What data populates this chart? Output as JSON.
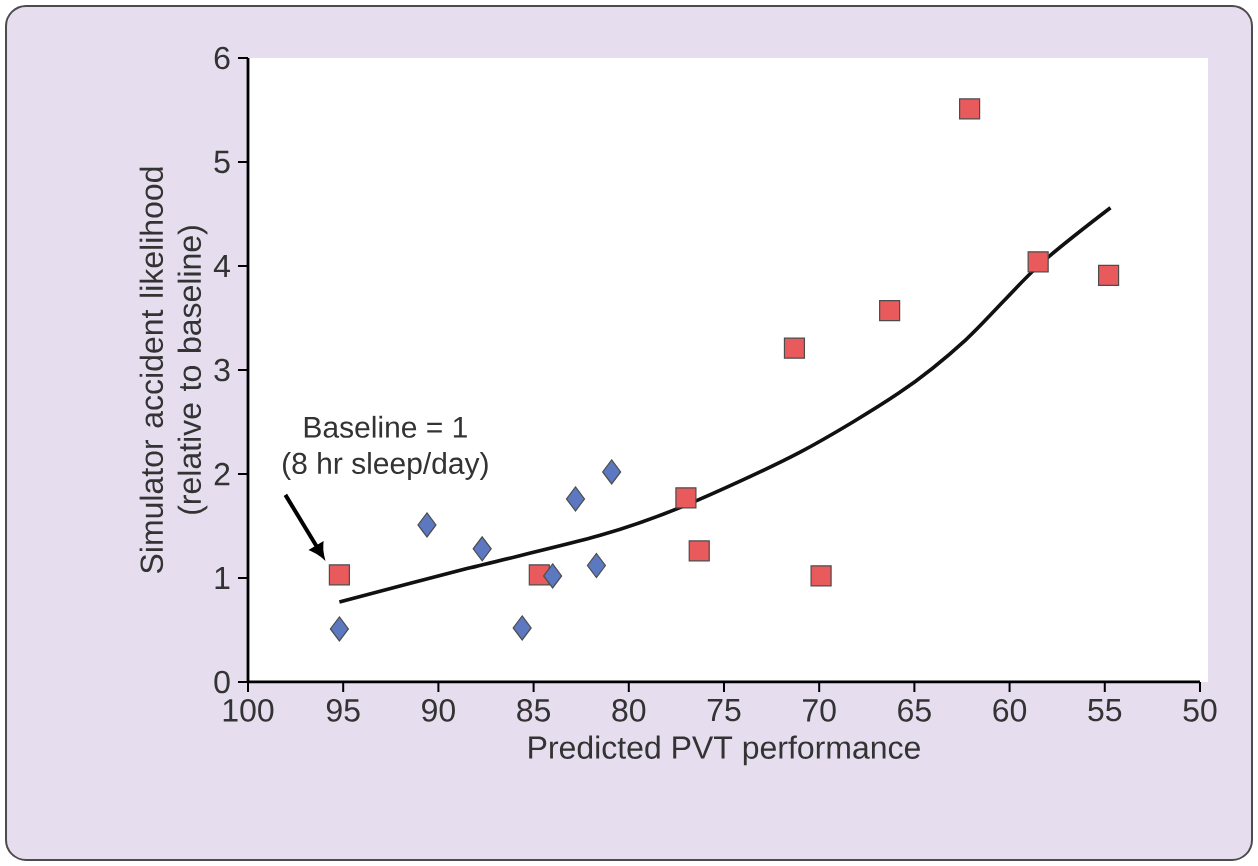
{
  "chart_data": {
    "type": "scatter",
    "xlabel": "Predicted PVT performance",
    "ylabel": "Simulator accident likelihood (relative to baseline)",
    "xlim": [
      100,
      50
    ],
    "xticks": [
      100,
      95,
      90,
      85,
      80,
      75,
      70,
      65,
      60,
      55,
      50
    ],
    "ylim": [
      0,
      6
    ],
    "yticks": [
      0,
      1,
      2,
      3,
      4,
      5,
      6
    ],
    "grid": false,
    "series": [
      {
        "type": "line",
        "color": "#111111",
        "marker": "none",
        "x": [
          95.2,
          88.5,
          81.5,
          77.0,
          71.0,
          65.8,
          62.3,
          58.5,
          54.7
        ],
        "values": [
          0.77,
          1.09,
          1.41,
          1.7,
          2.21,
          2.78,
          3.29,
          4.0,
          4.56
        ]
      },
      {
        "color": "#e85a5c",
        "marker": "square",
        "x": [
          95.2,
          84.7,
          77.0,
          76.3,
          71.3,
          69.9,
          66.3,
          62.1,
          58.5,
          54.8
        ],
        "values": [
          1.03,
          1.03,
          1.77,
          1.26,
          3.21,
          1.02,
          3.57,
          5.51,
          4.04,
          3.91
        ]
      },
      {
        "color": "#5b78c0",
        "marker": "diamond",
        "x": [
          95.2,
          90.6,
          87.7,
          85.6,
          84.0,
          82.8,
          81.7,
          80.9
        ],
        "values": [
          0.51,
          1.51,
          1.28,
          0.52,
          1.02,
          1.76,
          1.12,
          2.02
        ]
      }
    ],
    "annotations": [
      "Baseline = 1",
      "(8 hr sleep/day)"
    ]
  }
}
